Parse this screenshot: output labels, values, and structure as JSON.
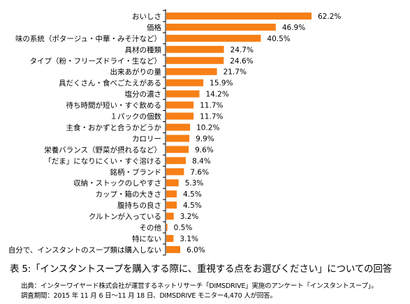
{
  "chart_data": {
    "type": "bar",
    "orientation": "horizontal",
    "categories": [
      "おいしさ",
      "価格",
      "味の系統（ポタージュ・中華・みそ汁など）",
      "具材の種類",
      "タイプ（粉・フリーズドライ・生など）",
      "出来あがりの量",
      "具だくさん・食べごたえがある",
      "塩分の濃さ",
      "待ち時間が短い・すぐ飲める",
      "１パックの個数",
      "主食・おかずと合うかどうか",
      "カロリー",
      "栄養バランス（野菜が摂れるなど）",
      "「だま」になりにくい・すぐ溶ける",
      "銘柄・ブランド",
      "収納・ストックのしやすさ",
      "カップ・箱の大きさ",
      "腹持ちの良さ",
      "クルトンが入っている",
      "その他",
      "特にない",
      "自分で、インスタントのスープ類は購入しない"
    ],
    "values": [
      62.2,
      46.9,
      40.5,
      24.7,
      24.6,
      21.7,
      15.9,
      14.2,
      11.7,
      11.7,
      10.2,
      9.9,
      9.6,
      8.4,
      7.6,
      5.3,
      4.5,
      4.5,
      3.2,
      0.5,
      3.1,
      6.0
    ],
    "value_labels": [
      "62.2%",
      "46.9%",
      "40.5%",
      "24.7%",
      "24.6%",
      "21.7%",
      "15.9%",
      "14.2%",
      "11.7%",
      "11.7%",
      "10.2%",
      "9.9%",
      "9.6%",
      "8.4%",
      "7.6%",
      "5.3%",
      "4.5%",
      "4.5%",
      "3.2%",
      "0.5%",
      "3.1%",
      "6.0%"
    ],
    "bar_color": "#f77f16",
    "xlim": [
      0,
      70
    ],
    "grid": false,
    "legend": "none"
  },
  "caption": "表 5:「インスタントスープを購入する際に、重視する点をお選びください」についての回答",
  "notes": {
    "source": "出典：インターワイヤード株式会社が運営するネットリサーチ「DIMSDRIVE」実施のアンケート「インスタントスープ」。",
    "period": "調査期間：2015 年 11 月 6 日～11 月 18 日、DIMSDRIVE モニター4,470 人が回答。"
  }
}
